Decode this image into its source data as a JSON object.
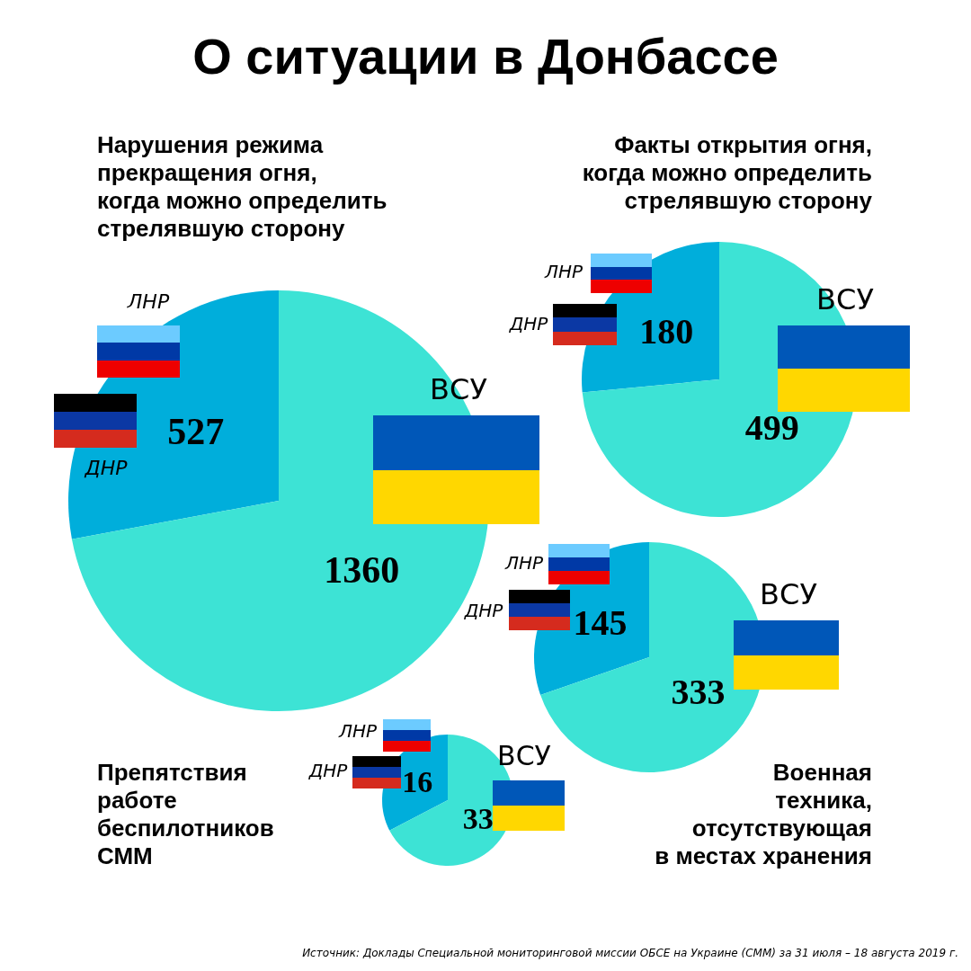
{
  "chart_data": [
    {
      "type": "pie",
      "title": "О ситуации в Донбассе",
      "subtitle": "Нарушения режима\nпрекращения огня,\nкогда можно определить\nстрелявшую сторону",
      "categories": [
        null,
        "ВСУ"
      ],
      "values": [
        527,
        1360
      ],
      "colors": [
        "#00aedb",
        "#3de3d5"
      ],
      "data_labels": true,
      "annotations": [
        "ЛНР",
        "ДНР",
        "Источник: Доклады Специальной мониторинговой миссии ОБСЕ на Украине (СММ) за 31 июля – 18 августа 2019 г."
      ]
    },
    {
      "type": "pie",
      "subtitle": "Факты открытия огня,\nкогда можно определить\nстрелявшую сторону",
      "categories": [
        null,
        "ВСУ"
      ],
      "values": [
        180,
        499
      ],
      "colors": [
        "#00aedb",
        "#3de3d5"
      ],
      "data_labels": true,
      "annotations": [
        "ЛНР",
        "ДНР"
      ]
    },
    {
      "type": "pie",
      "subtitle": "Военная\nтехника,\nотсутствующая\nв местах хранения",
      "categories": [
        null,
        "ВСУ"
      ],
      "values": [
        145,
        333
      ],
      "colors": [
        "#00aedb",
        "#3de3d5"
      ],
      "data_labels": true,
      "annotations": [
        "ЛНР",
        "ДНР"
      ]
    },
    {
      "type": "pie",
      "subtitle": "Препятствия\nработе\nбеспилотников\nСММ",
      "categories": [
        null,
        "ВСУ"
      ],
      "values": [
        16,
        33
      ],
      "colors": [
        "#00aedb",
        "#3de3d5"
      ],
      "data_labels": true,
      "annotations": [
        "ЛНР",
        "ДНР"
      ]
    }
  ]
}
